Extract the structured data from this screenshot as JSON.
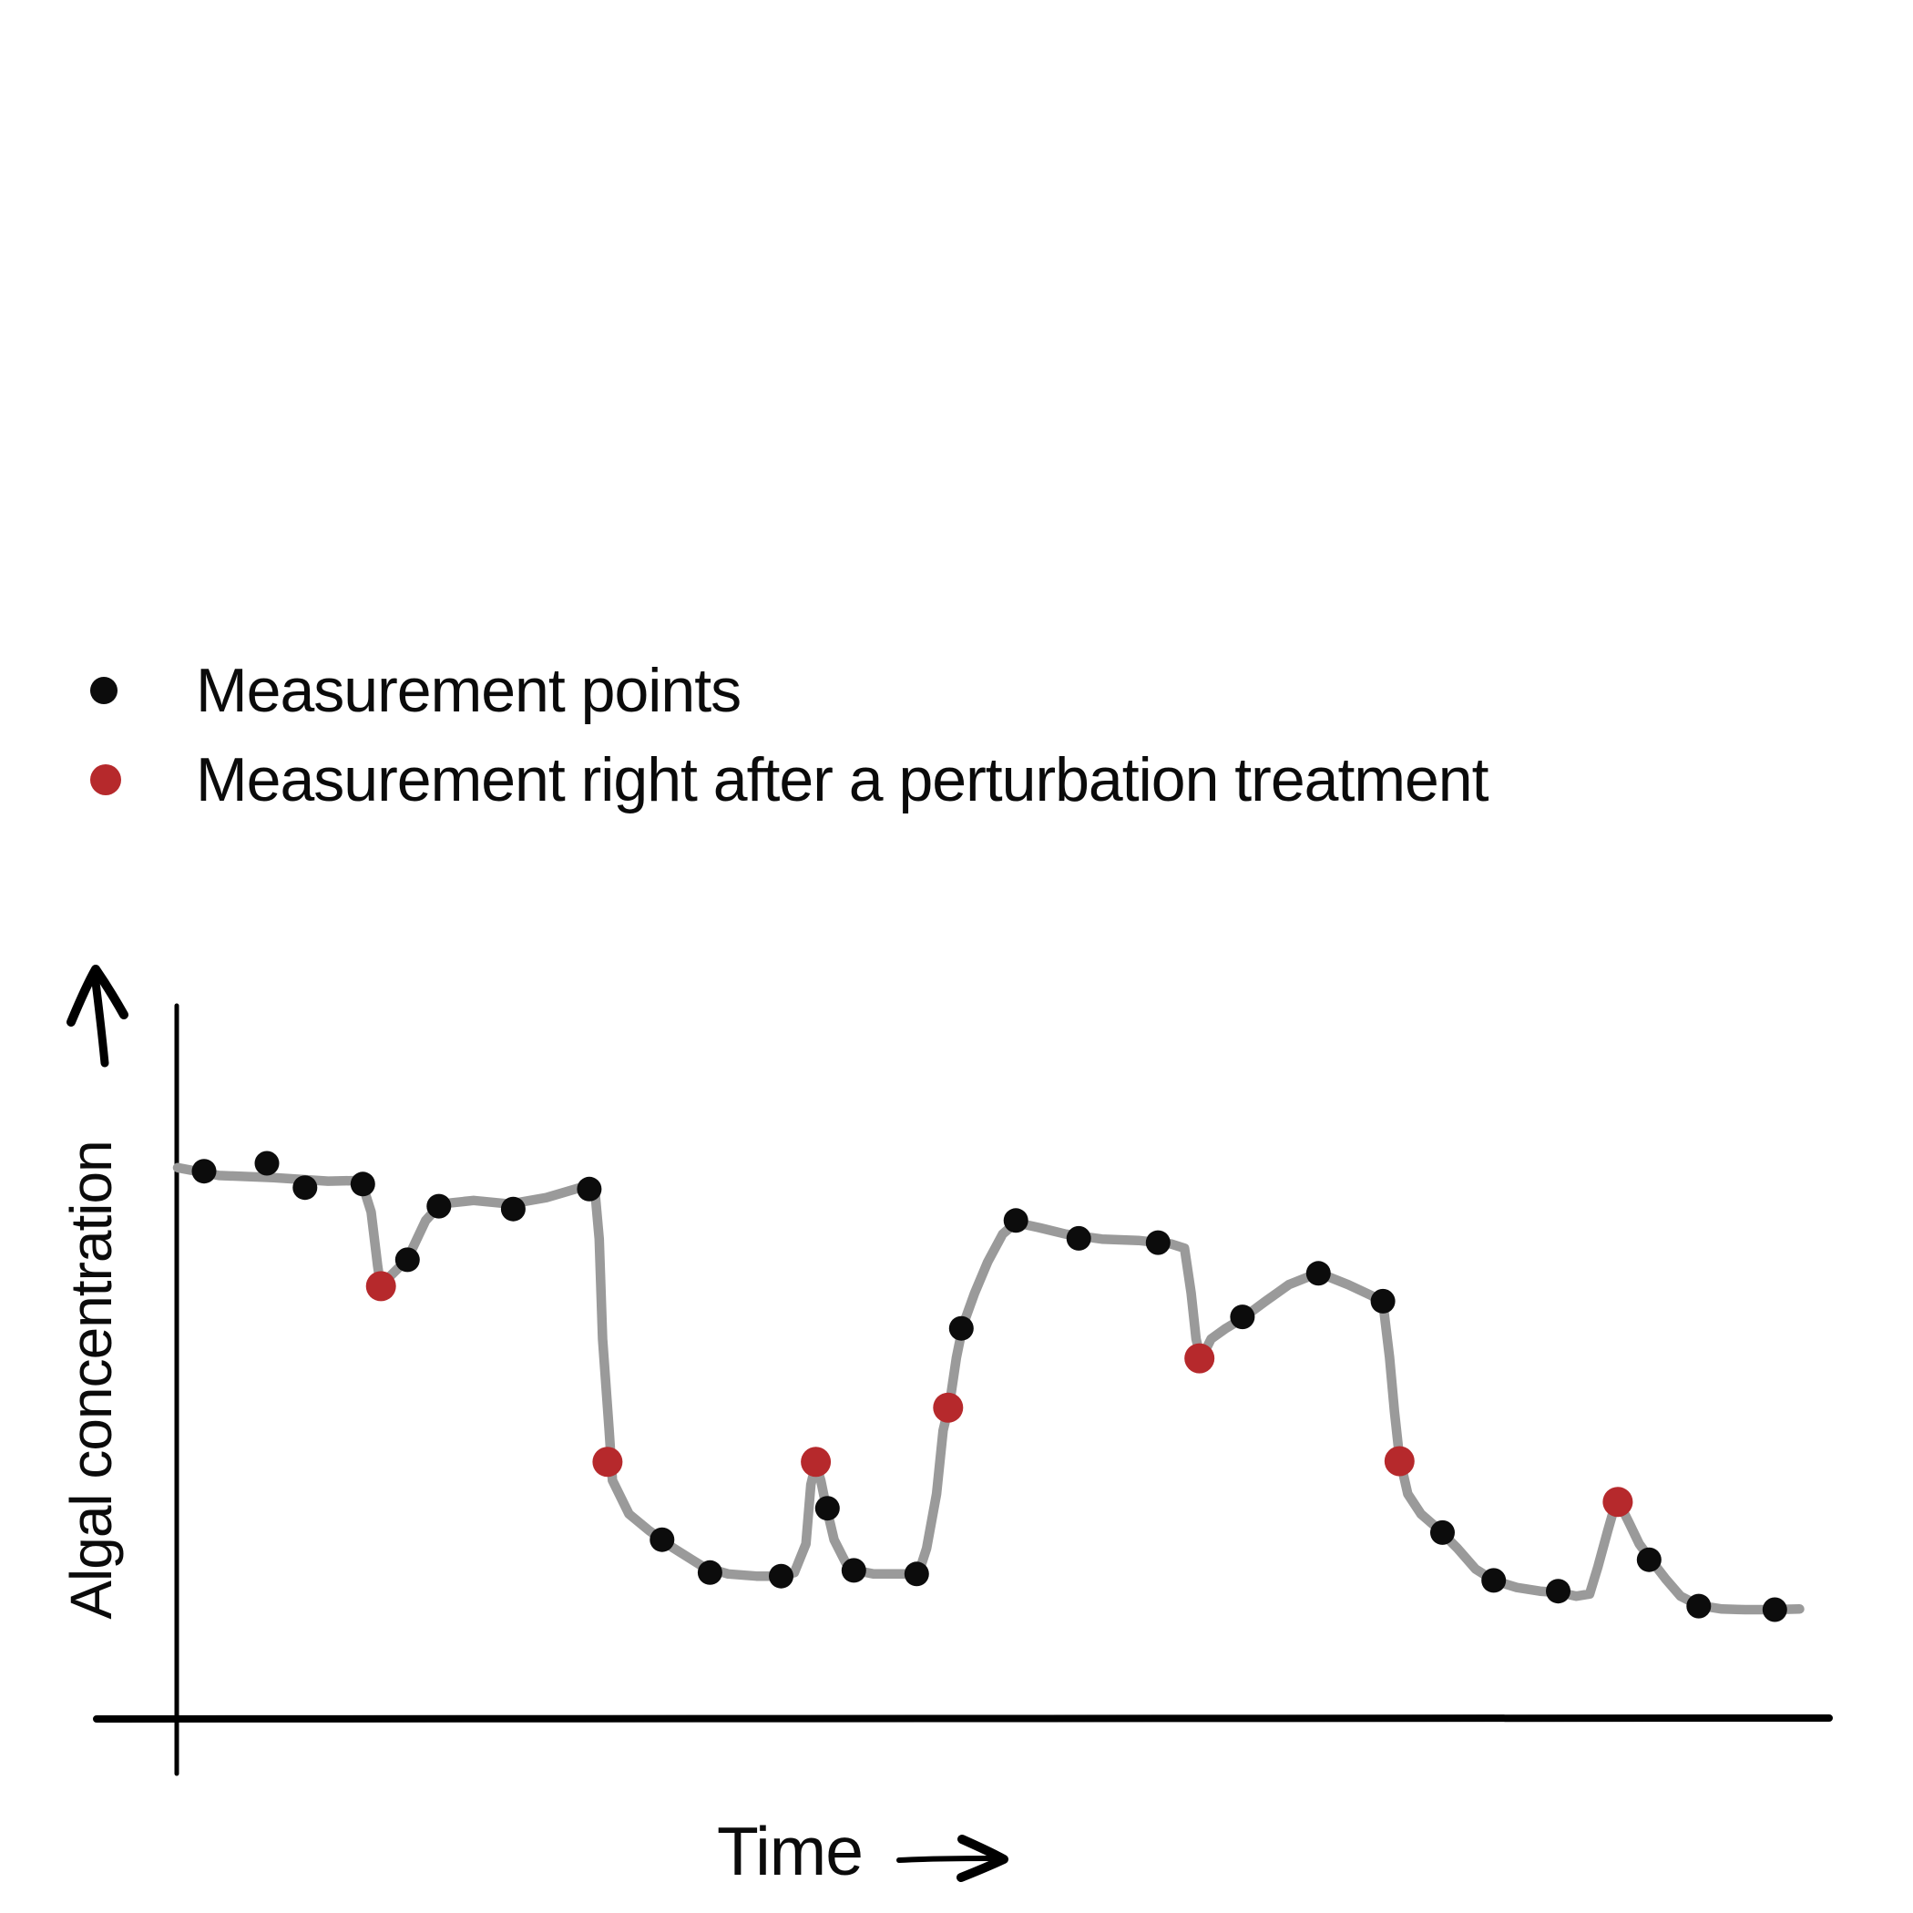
{
  "page": {
    "background": "#ffffff"
  },
  "legend": {
    "items": [
      {
        "key": "measurement",
        "label": "Measurement points"
      },
      {
        "key": "perturbation",
        "label": "Measurement right after a perturbation treatment"
      }
    ]
  },
  "axes": {
    "y_label": "Algal concentration",
    "x_label": "Time",
    "ticks": "none"
  },
  "colors": {
    "curve": "#9a9a9a",
    "measurement": "#0c0c0c",
    "perturbation": "#b6292c",
    "axis": "#000000",
    "text": "#0b0b0b"
  },
  "chart_data": {
    "type": "line",
    "title": "",
    "xlabel": "Time",
    "ylabel": "Algal concentration",
    "xlim": [
      0,
      100
    ],
    "ylim": [
      0,
      100
    ],
    "grid": false,
    "legend_position": "top-left",
    "axis_style": "schematic hand-drawn axes with arrowheads, no tick labels",
    "series": [
      {
        "name": "Algal concentration curve",
        "role": "curve",
        "key": "curve",
        "points": [
          [
            0,
            77.2
          ],
          [
            2.5,
            76.1
          ],
          [
            5.8,
            75.8
          ],
          [
            9.1,
            75.3
          ],
          [
            11.1,
            75.4
          ],
          [
            11.7,
            71
          ],
          [
            12.1,
            63.4
          ],
          [
            12.3,
            60.3
          ],
          [
            12.9,
            62.1
          ],
          [
            13.9,
            64.4
          ],
          [
            15,
            69.8
          ],
          [
            15.9,
            72.1
          ],
          [
            17.9,
            72.6
          ],
          [
            20.1,
            72.1
          ],
          [
            22.3,
            73
          ],
          [
            24.5,
            74.5
          ],
          [
            25.2,
            74.9
          ],
          [
            25.5,
            67.2
          ],
          [
            25.7,
            53.2
          ],
          [
            26.1,
            40.4
          ],
          [
            26.3,
            33.4
          ],
          [
            27.3,
            28.7
          ],
          [
            28.5,
            26.4
          ],
          [
            30,
            23.9
          ],
          [
            31.8,
            21.3
          ],
          [
            33.3,
            20.3
          ],
          [
            35,
            20
          ],
          [
            36.5,
            20
          ],
          [
            37.3,
            20.5
          ],
          [
            38,
            24.5
          ],
          [
            38.3,
            32.8
          ],
          [
            38.6,
            35.7
          ],
          [
            38.9,
            33.4
          ],
          [
            39.2,
            30
          ],
          [
            39.7,
            25.1
          ],
          [
            40.4,
            21.9
          ],
          [
            41,
            20.8
          ],
          [
            42.1,
            20.3
          ],
          [
            43.5,
            20.3
          ],
          [
            44.8,
            20.3
          ],
          [
            45.3,
            23.9
          ],
          [
            45.9,
            31.5
          ],
          [
            46.3,
            40.4
          ],
          [
            46.7,
            44.3
          ],
          [
            47.1,
            50.6
          ],
          [
            47.5,
            55.1
          ],
          [
            48.2,
            59.6
          ],
          [
            49,
            64
          ],
          [
            49.9,
            67.9
          ],
          [
            50.7,
            69.5
          ],
          [
            52.1,
            68.8
          ],
          [
            53.7,
            67.9
          ],
          [
            55.9,
            67.2
          ],
          [
            58.1,
            67
          ],
          [
            60.1,
            66.5
          ],
          [
            60.9,
            65.9
          ],
          [
            61.3,
            59.6
          ],
          [
            61.6,
            53.2
          ],
          [
            61.9,
            50.4
          ],
          [
            62.5,
            53.2
          ],
          [
            63.4,
            54.7
          ],
          [
            64.4,
            56.1
          ],
          [
            65.8,
            58.5
          ],
          [
            67.2,
            60.8
          ],
          [
            68.6,
            62.1
          ],
          [
            69.4,
            62.1
          ],
          [
            70.8,
            60.8
          ],
          [
            72.2,
            59.3
          ],
          [
            72.9,
            58.3
          ],
          [
            73.3,
            50.6
          ],
          [
            73.6,
            43
          ],
          [
            73.9,
            36.6
          ],
          [
            74.4,
            31.5
          ],
          [
            75.2,
            28.7
          ],
          [
            76.2,
            26.7
          ],
          [
            77.4,
            23.9
          ],
          [
            78.5,
            21
          ],
          [
            79.6,
            19.4
          ],
          [
            81,
            18.4
          ],
          [
            82.4,
            17.9
          ],
          [
            83.6,
            17.7
          ],
          [
            84.6,
            17.2
          ],
          [
            85.4,
            17.5
          ],
          [
            85.9,
            21.3
          ],
          [
            86.5,
            26.4
          ],
          [
            86.9,
            29.6
          ],
          [
            87.2,
            30.2
          ],
          [
            87.8,
            27.4
          ],
          [
            88.4,
            24.5
          ],
          [
            89.1,
            22.3
          ],
          [
            90,
            19.6
          ],
          [
            90.9,
            17.2
          ],
          [
            92,
            15.9
          ],
          [
            93.4,
            15.4
          ],
          [
            94.8,
            15.3
          ],
          [
            96.4,
            15.3
          ],
          [
            98.1,
            15.4
          ]
        ]
      },
      {
        "name": "Measurement points",
        "role": "scatter",
        "key": "measurement",
        "points": [
          [
            1.6,
            76.7
          ],
          [
            5.4,
            77.8
          ],
          [
            7.7,
            74.4
          ],
          [
            11.2,
            74.9
          ],
          [
            13.9,
            64.3
          ],
          [
            15.8,
            71.8
          ],
          [
            20.3,
            71.4
          ],
          [
            24.9,
            74.2
          ],
          [
            29.3,
            25.1
          ],
          [
            32.2,
            20.5
          ],
          [
            36.5,
            20
          ],
          [
            39.3,
            29.5
          ],
          [
            40.9,
            20.8
          ],
          [
            44.7,
            20.3
          ],
          [
            47.4,
            54.7
          ],
          [
            50.7,
            69.8
          ],
          [
            54.5,
            67.3
          ],
          [
            59.3,
            66.7
          ],
          [
            64.4,
            56.3
          ],
          [
            69,
            62.4
          ],
          [
            72.9,
            58.5
          ],
          [
            76.5,
            26.1
          ],
          [
            79.6,
            19.4
          ],
          [
            83.5,
            17.9
          ],
          [
            89,
            22.3
          ],
          [
            92,
            15.8
          ],
          [
            96.6,
            15.3
          ]
        ]
      },
      {
        "name": "Measurement right after a perturbation treatment",
        "role": "scatter",
        "key": "perturbation",
        "points": [
          [
            12.3,
            60.6
          ],
          [
            26,
            36
          ],
          [
            38.6,
            36
          ],
          [
            46.6,
            43.6
          ],
          [
            61.8,
            50.5
          ],
          [
            73.9,
            36.1
          ],
          [
            87.1,
            30.4
          ]
        ]
      }
    ]
  }
}
